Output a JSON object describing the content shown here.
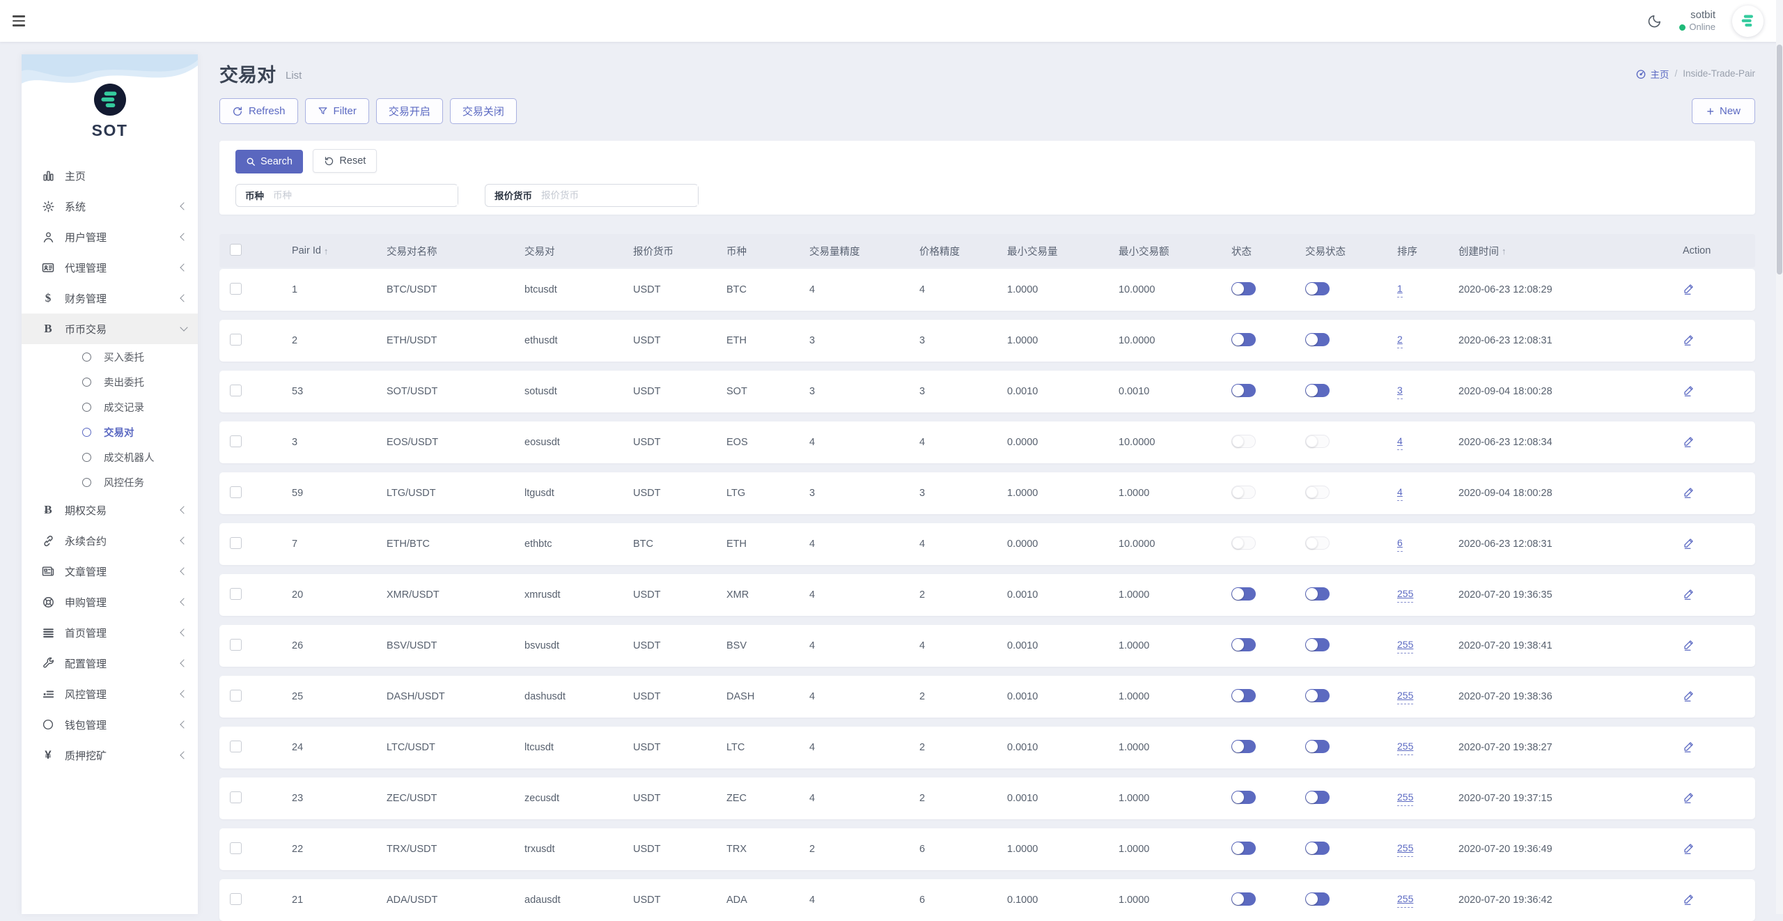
{
  "topbar": {
    "brand": "sotbit",
    "status": "Online"
  },
  "sidebar": {
    "logo_text": "SOT",
    "items": [
      {
        "label": "主页",
        "icon": "bar-chart-icon",
        "expandable": false
      },
      {
        "label": "系统",
        "icon": "gear-icon",
        "expandable": true
      },
      {
        "label": "用户管理",
        "icon": "user-icon",
        "expandable": true
      },
      {
        "label": "代理管理",
        "icon": "id-card-icon",
        "expandable": true
      },
      {
        "label": "财务管理",
        "icon": "dollar-icon",
        "expandable": true
      },
      {
        "label": "币币交易",
        "icon": "letter-b-icon",
        "expandable": true,
        "expanded": true,
        "active": true,
        "children": [
          {
            "label": "买入委托",
            "active": false
          },
          {
            "label": "卖出委托",
            "active": false
          },
          {
            "label": "成交记录",
            "active": false
          },
          {
            "label": "交易对",
            "active": true
          },
          {
            "label": "成交机器人",
            "active": false
          },
          {
            "label": "风控任务",
            "active": false
          }
        ]
      },
      {
        "label": "期权交易",
        "icon": "bitcoin-icon",
        "expandable": true
      },
      {
        "label": "永续合约",
        "icon": "link-icon",
        "expandable": true
      },
      {
        "label": "文章管理",
        "icon": "newspaper-icon",
        "expandable": true
      },
      {
        "label": "申购管理",
        "icon": "lifebuoy-icon",
        "expandable": true
      },
      {
        "label": "首页管理",
        "icon": "list-icon",
        "expandable": true
      },
      {
        "label": "配置管理",
        "icon": "wrench-icon",
        "expandable": true
      },
      {
        "label": "风控管理",
        "icon": "indent-list-icon",
        "expandable": true
      },
      {
        "label": "钱包管理",
        "icon": "circle-icon",
        "expandable": true
      },
      {
        "label": "质押挖矿",
        "icon": "yen-icon",
        "expandable": true
      }
    ]
  },
  "page": {
    "title": "交易对",
    "subtitle": "List",
    "breadcrumb": {
      "home": "主页",
      "separator": "/",
      "current": "Inside-Trade-Pair"
    },
    "toolbar": {
      "refresh": "Refresh",
      "filter": "Filter",
      "trade_open": "交易开启",
      "trade_close": "交易关闭",
      "new_label": "New",
      "plus_glyph": "+"
    }
  },
  "search": {
    "search_label": "Search",
    "reset_label": "Reset",
    "fields": [
      {
        "label": "币种",
        "placeholder": "币种",
        "value": ""
      },
      {
        "label": "报价货币",
        "placeholder": "报价货币",
        "value": ""
      }
    ]
  },
  "table": {
    "sort_indicator": "↑",
    "columns": [
      {
        "label": "Pair Id",
        "sorted": true
      },
      {
        "label": "交易对名称",
        "sorted": false
      },
      {
        "label": "交易对",
        "sorted": false
      },
      {
        "label": "报价货币",
        "sorted": false
      },
      {
        "label": "币种",
        "sorted": false
      },
      {
        "label": "交易量精度",
        "sorted": false
      },
      {
        "label": "价格精度",
        "sorted": false
      },
      {
        "label": "最小交易量",
        "sorted": false
      },
      {
        "label": "最小交易额",
        "sorted": false
      },
      {
        "label": "状态",
        "sorted": false
      },
      {
        "label": "交易状态",
        "sorted": false
      },
      {
        "label": "排序",
        "sorted": false
      },
      {
        "label": "创建时间",
        "sorted": true
      },
      {
        "label": "Action",
        "sorted": false
      }
    ],
    "rows": [
      {
        "pair_id": "1",
        "name": "BTC/USDT",
        "pair": "btcusdt",
        "quote": "USDT",
        "coin": "BTC",
        "qty_precision": "4",
        "price_precision": "4",
        "min_qty": "1.0000",
        "min_amount": "10.0000",
        "status_on": true,
        "trade_on": true,
        "sort": "1",
        "created": "2020-06-23 12:08:29"
      },
      {
        "pair_id": "2",
        "name": "ETH/USDT",
        "pair": "ethusdt",
        "quote": "USDT",
        "coin": "ETH",
        "qty_precision": "3",
        "price_precision": "3",
        "min_qty": "1.0000",
        "min_amount": "10.0000",
        "status_on": true,
        "trade_on": true,
        "sort": "2",
        "created": "2020-06-23 12:08:31"
      },
      {
        "pair_id": "53",
        "name": "SOT/USDT",
        "pair": "sotusdt",
        "quote": "USDT",
        "coin": "SOT",
        "qty_precision": "3",
        "price_precision": "3",
        "min_qty": "0.0010",
        "min_amount": "0.0010",
        "status_on": true,
        "trade_on": true,
        "sort": "3",
        "created": "2020-09-04 18:00:28"
      },
      {
        "pair_id": "3",
        "name": "EOS/USDT",
        "pair": "eosusdt",
        "quote": "USDT",
        "coin": "EOS",
        "qty_precision": "4",
        "price_precision": "4",
        "min_qty": "0.0000",
        "min_amount": "10.0000",
        "status_on": false,
        "trade_on": false,
        "sort": "4",
        "created": "2020-06-23 12:08:34"
      },
      {
        "pair_id": "59",
        "name": "LTG/USDT",
        "pair": "ltgusdt",
        "quote": "USDT",
        "coin": "LTG",
        "qty_precision": "3",
        "price_precision": "3",
        "min_qty": "1.0000",
        "min_amount": "1.0000",
        "status_on": false,
        "trade_on": false,
        "sort": "4",
        "created": "2020-09-04 18:00:28"
      },
      {
        "pair_id": "7",
        "name": "ETH/BTC",
        "pair": "ethbtc",
        "quote": "BTC",
        "coin": "ETH",
        "qty_precision": "4",
        "price_precision": "4",
        "min_qty": "0.0000",
        "min_amount": "10.0000",
        "status_on": false,
        "trade_on": false,
        "sort": "6",
        "created": "2020-06-23 12:08:31"
      },
      {
        "pair_id": "20",
        "name": "XMR/USDT",
        "pair": "xmrusdt",
        "quote": "USDT",
        "coin": "XMR",
        "qty_precision": "4",
        "price_precision": "2",
        "min_qty": "0.0010",
        "min_amount": "1.0000",
        "status_on": true,
        "trade_on": true,
        "sort": "255",
        "created": "2020-07-20 19:36:35"
      },
      {
        "pair_id": "26",
        "name": "BSV/USDT",
        "pair": "bsvusdt",
        "quote": "USDT",
        "coin": "BSV",
        "qty_precision": "4",
        "price_precision": "4",
        "min_qty": "0.0010",
        "min_amount": "1.0000",
        "status_on": true,
        "trade_on": true,
        "sort": "255",
        "created": "2020-07-20 19:38:41"
      },
      {
        "pair_id": "25",
        "name": "DASH/USDT",
        "pair": "dashusdt",
        "quote": "USDT",
        "coin": "DASH",
        "qty_precision": "4",
        "price_precision": "2",
        "min_qty": "0.0010",
        "min_amount": "1.0000",
        "status_on": true,
        "trade_on": true,
        "sort": "255",
        "created": "2020-07-20 19:38:36"
      },
      {
        "pair_id": "24",
        "name": "LTC/USDT",
        "pair": "ltcusdt",
        "quote": "USDT",
        "coin": "LTC",
        "qty_precision": "4",
        "price_precision": "2",
        "min_qty": "0.0010",
        "min_amount": "1.0000",
        "status_on": true,
        "trade_on": true,
        "sort": "255",
        "created": "2020-07-20 19:38:27"
      },
      {
        "pair_id": "23",
        "name": "ZEC/USDT",
        "pair": "zecusdt",
        "quote": "USDT",
        "coin": "ZEC",
        "qty_precision": "4",
        "price_precision": "2",
        "min_qty": "0.0010",
        "min_amount": "1.0000",
        "status_on": true,
        "trade_on": true,
        "sort": "255",
        "created": "2020-07-20 19:37:15"
      },
      {
        "pair_id": "22",
        "name": "TRX/USDT",
        "pair": "trxusdt",
        "quote": "USDT",
        "coin": "TRX",
        "qty_precision": "2",
        "price_precision": "6",
        "min_qty": "1.0000",
        "min_amount": "1.0000",
        "status_on": true,
        "trade_on": true,
        "sort": "255",
        "created": "2020-07-20 19:36:49"
      },
      {
        "pair_id": "21",
        "name": "ADA/USDT",
        "pair": "adausdt",
        "quote": "USDT",
        "coin": "ADA",
        "qty_precision": "4",
        "price_precision": "6",
        "min_qty": "0.1000",
        "min_amount": "1.0000",
        "status_on": true,
        "trade_on": true,
        "sort": "255",
        "created": "2020-07-20 19:36:42"
      }
    ]
  },
  "colors": {
    "accent": "#5b69c2",
    "toggle_on": "#5c6ac0",
    "online_green": "#1fb978",
    "logo_teal": "#35cb9e",
    "page_bg": "#edeff5",
    "table_header_bg": "#e9ebf2"
  }
}
